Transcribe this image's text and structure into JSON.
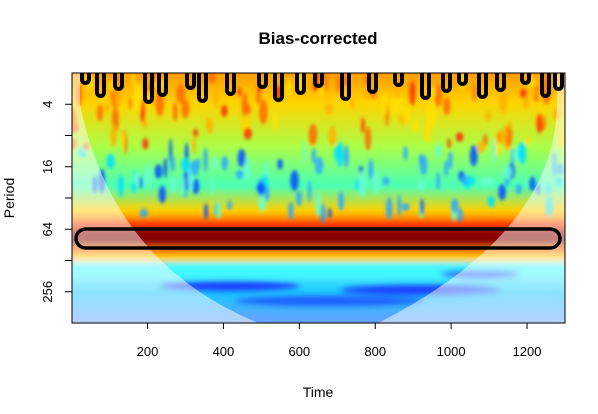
{
  "chart_data": {
    "type": "heatmap",
    "title": "Bias-corrected",
    "xlabel": "Time",
    "ylabel": "Period",
    "xlim": [
      1,
      1300
    ],
    "xticks": [
      200,
      400,
      600,
      800,
      1000,
      1200
    ],
    "xtick_labels": [
      "200",
      "400",
      "600",
      "800",
      "1000",
      "1200"
    ],
    "y_scale": "log2",
    "y_reversed": true,
    "ylim": [
      2,
      512
    ],
    "yticks": [
      4,
      16,
      64,
      256
    ],
    "ytick_labels": [
      "4",
      "16",
      "64",
      "256"
    ],
    "colormap": [
      "#0000ff",
      "#00ffff",
      "#00ff80",
      "#ffff00",
      "#ff8000",
      "#ff0000",
      "#800000"
    ],
    "dominant_band": {
      "period": 64,
      "x_start": 15,
      "x_end": 1280,
      "significant": true
    },
    "secondary_band": {
      "period": 128
    },
    "cone_of_influence": {
      "min_period": 4,
      "max_period_at_center": 512,
      "center_time": 650
    }
  }
}
